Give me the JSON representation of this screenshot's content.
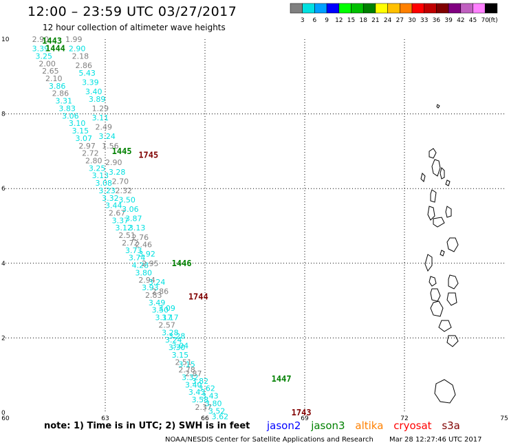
{
  "header": {
    "title": "12:00 – 23:59 UTC 03/27/2017",
    "subtitle": "12 hour collection of altimeter wave heights"
  },
  "legend": {
    "unit": "(ft)",
    "bins": [
      {
        "label": "3",
        "color": "#808080"
      },
      {
        "label": "6",
        "color": "#00e0e0"
      },
      {
        "label": "9",
        "color": "#00a0ff"
      },
      {
        "label": "12",
        "color": "#0000ff"
      },
      {
        "label": "15",
        "color": "#00ff00"
      },
      {
        "label": "18",
        "color": "#00c000"
      },
      {
        "label": "21",
        "color": "#008000"
      },
      {
        "label": "24",
        "color": "#ffff00"
      },
      {
        "label": "27",
        "color": "#ffc000"
      },
      {
        "label": "30",
        "color": "#ff8000"
      },
      {
        "label": "33",
        "color": "#ff0000"
      },
      {
        "label": "36",
        "color": "#c00000"
      },
      {
        "label": "39",
        "color": "#800000"
      },
      {
        "label": "42",
        "color": "#800080"
      },
      {
        "label": "45",
        "color": "#c060c0"
      },
      {
        "label": "70",
        "color": "#ff80ff"
      },
      {
        "label": "",
        "color": "#000000"
      }
    ]
  },
  "axes": {
    "x_ticks": [
      "60",
      "63",
      "66",
      "69",
      "72",
      "75"
    ],
    "y_ticks": [
      "0",
      "2",
      "4",
      "6",
      "8",
      "10"
    ]
  },
  "passes": [
    {
      "time": "1443",
      "color": "#008000",
      "lon": 61.1,
      "lat": 9.95
    },
    {
      "time": "1444",
      "color": "#008000",
      "lon": 61.2,
      "lat": 9.75
    },
    {
      "time": "1445",
      "color": "#008000",
      "lon": 63.2,
      "lat": 7.0
    },
    {
      "time": "1745",
      "color": "#800000",
      "lon": 64.0,
      "lat": 6.9
    },
    {
      "time": "1446",
      "color": "#008000",
      "lon": 65.0,
      "lat": 4.0
    },
    {
      "time": "1744",
      "color": "#800000",
      "lon": 65.5,
      "lat": 3.1
    },
    {
      "time": "1447",
      "color": "#008000",
      "lon": 68.0,
      "lat": 0.9
    },
    {
      "time": "1743",
      "color": "#800000",
      "lon": 68.6,
      "lat": 0.0
    }
  ],
  "obs": [
    {
      "v": "2.90",
      "color": "#808080",
      "lon": 60.8,
      "lat": 10.0
    },
    {
      "v": "3.39",
      "color": "#00e0e0",
      "lon": 60.8,
      "lat": 9.75
    },
    {
      "v": "3.25",
      "color": "#00e0e0",
      "lon": 60.9,
      "lat": 9.55
    },
    {
      "v": "2.00",
      "color": "#808080",
      "lon": 61.0,
      "lat": 9.35
    },
    {
      "v": "2.65",
      "color": "#808080",
      "lon": 61.1,
      "lat": 9.15
    },
    {
      "v": "2.10",
      "color": "#808080",
      "lon": 61.2,
      "lat": 8.95
    },
    {
      "v": "3.86",
      "color": "#00e0e0",
      "lon": 61.3,
      "lat": 8.75
    },
    {
      "v": "2.86",
      "color": "#808080",
      "lon": 61.4,
      "lat": 8.55
    },
    {
      "v": "3.31",
      "color": "#00e0e0",
      "lon": 61.5,
      "lat": 8.35
    },
    {
      "v": "3.83",
      "color": "#00e0e0",
      "lon": 61.6,
      "lat": 8.15
    },
    {
      "v": "3.06",
      "color": "#00e0e0",
      "lon": 61.7,
      "lat": 7.95
    },
    {
      "v": "3.10",
      "color": "#00e0e0",
      "lon": 61.9,
      "lat": 7.75
    },
    {
      "v": "3.15",
      "color": "#00e0e0",
      "lon": 62.0,
      "lat": 7.55
    },
    {
      "v": "3.07",
      "color": "#00e0e0",
      "lon": 62.1,
      "lat": 7.35
    },
    {
      "v": "2.97",
      "color": "#808080",
      "lon": 62.2,
      "lat": 7.15
    },
    {
      "v": "2.72",
      "color": "#808080",
      "lon": 62.3,
      "lat": 6.95
    },
    {
      "v": "2.80",
      "color": "#808080",
      "lon": 62.4,
      "lat": 6.75
    },
    {
      "v": "3.25",
      "color": "#00e0e0",
      "lon": 62.5,
      "lat": 6.55
    },
    {
      "v": "3.13",
      "color": "#00e0e0",
      "lon": 62.6,
      "lat": 6.35
    },
    {
      "v": "3.08",
      "color": "#00e0e0",
      "lon": 62.7,
      "lat": 6.15
    },
    {
      "v": "3.23",
      "color": "#00e0e0",
      "lon": 62.8,
      "lat": 5.95
    },
    {
      "v": "3.32",
      "color": "#00e0e0",
      "lon": 62.9,
      "lat": 5.75
    },
    {
      "v": "3.44",
      "color": "#00e0e0",
      "lon": 63.0,
      "lat": 5.55
    },
    {
      "v": "2.67",
      "color": "#808080",
      "lon": 63.1,
      "lat": 5.35
    },
    {
      "v": "3.37",
      "color": "#00e0e0",
      "lon": 63.2,
      "lat": 5.15
    },
    {
      "v": "3.12",
      "color": "#00e0e0",
      "lon": 63.3,
      "lat": 4.95
    },
    {
      "v": "2.51",
      "color": "#808080",
      "lon": 63.4,
      "lat": 4.75
    },
    {
      "v": "2.72",
      "color": "#808080",
      "lon": 63.5,
      "lat": 4.55
    },
    {
      "v": "3.73",
      "color": "#00e0e0",
      "lon": 63.6,
      "lat": 4.35
    },
    {
      "v": "3.74",
      "color": "#00e0e0",
      "lon": 63.7,
      "lat": 4.15
    },
    {
      "v": "4.28",
      "color": "#00e0e0",
      "lon": 63.8,
      "lat": 3.95
    },
    {
      "v": "3.80",
      "color": "#00e0e0",
      "lon": 63.9,
      "lat": 3.75
    },
    {
      "v": "2.94",
      "color": "#808080",
      "lon": 64.0,
      "lat": 3.55
    },
    {
      "v": "3.93",
      "color": "#00e0e0",
      "lon": 64.1,
      "lat": 3.35
    },
    {
      "v": "2.83",
      "color": "#808080",
      "lon": 64.2,
      "lat": 3.15
    },
    {
      "v": "3.49",
      "color": "#00e0e0",
      "lon": 64.3,
      "lat": 2.95
    },
    {
      "v": "3.50",
      "color": "#00e0e0",
      "lon": 64.4,
      "lat": 2.75
    },
    {
      "v": "3.17",
      "color": "#00e0e0",
      "lon": 64.5,
      "lat": 2.55
    },
    {
      "v": "2.57",
      "color": "#808080",
      "lon": 64.6,
      "lat": 2.35
    },
    {
      "v": "3.28",
      "color": "#00e0e0",
      "lon": 64.7,
      "lat": 2.15
    },
    {
      "v": "3.24",
      "color": "#00e0e0",
      "lon": 64.8,
      "lat": 1.95
    },
    {
      "v": "3.30",
      "color": "#00e0e0",
      "lon": 64.9,
      "lat": 1.75
    },
    {
      "v": "3.15",
      "color": "#00e0e0",
      "lon": 65.0,
      "lat": 1.55
    },
    {
      "v": "2.51",
      "color": "#808080",
      "lon": 65.1,
      "lat": 1.35
    },
    {
      "v": "2.78",
      "color": "#808080",
      "lon": 65.2,
      "lat": 1.15
    },
    {
      "v": "3.32",
      "color": "#00e0e0",
      "lon": 65.3,
      "lat": 0.95
    },
    {
      "v": "3.40",
      "color": "#00e0e0",
      "lon": 65.4,
      "lat": 0.75
    },
    {
      "v": "3.43",
      "color": "#00e0e0",
      "lon": 65.5,
      "lat": 0.55
    },
    {
      "v": "3.58",
      "color": "#00e0e0",
      "lon": 65.6,
      "lat": 0.35
    },
    {
      "v": "2.37",
      "color": "#808080",
      "lon": 65.7,
      "lat": 0.15
    },
    {
      "v": "1.99",
      "color": "#808080",
      "lon": 61.8,
      "lat": 10.0
    },
    {
      "v": "2.90",
      "color": "#00e0e0",
      "lon": 61.9,
      "lat": 9.75
    },
    {
      "v": "2.18",
      "color": "#808080",
      "lon": 62.0,
      "lat": 9.55
    },
    {
      "v": "2.86",
      "color": "#808080",
      "lon": 62.1,
      "lat": 9.3
    },
    {
      "v": "5.43",
      "color": "#00e0e0",
      "lon": 62.2,
      "lat": 9.1
    },
    {
      "v": "3.39",
      "color": "#00e0e0",
      "lon": 62.3,
      "lat": 8.85
    },
    {
      "v": "3.40",
      "color": "#00e0e0",
      "lon": 62.4,
      "lat": 8.6
    },
    {
      "v": "3.89",
      "color": "#00e0e0",
      "lon": 62.5,
      "lat": 8.4
    },
    {
      "v": "1.29",
      "color": "#808080",
      "lon": 62.6,
      "lat": 8.15
    },
    {
      "v": "3.11",
      "color": "#00e0e0",
      "lon": 62.6,
      "lat": 7.9
    },
    {
      "v": "2.49",
      "color": "#808080",
      "lon": 62.7,
      "lat": 7.65
    },
    {
      "v": "3.24",
      "color": "#00e0e0",
      "lon": 62.8,
      "lat": 7.4
    },
    {
      "v": "1.56",
      "color": "#808080",
      "lon": 62.9,
      "lat": 7.15
    },
    {
      "v": "2.90",
      "color": "#808080",
      "lon": 63.0,
      "lat": 6.7
    },
    {
      "v": "3.28",
      "color": "#00e0e0",
      "lon": 63.1,
      "lat": 6.45
    },
    {
      "v": "2.70",
      "color": "#808080",
      "lon": 63.2,
      "lat": 6.2
    },
    {
      "v": "2.32",
      "color": "#808080",
      "lon": 63.3,
      "lat": 5.95
    },
    {
      "v": "3.50",
      "color": "#00e0e0",
      "lon": 63.4,
      "lat": 5.7
    },
    {
      "v": "3.06",
      "color": "#00e0e0",
      "lon": 63.5,
      "lat": 5.45
    },
    {
      "v": "3.87",
      "color": "#00e0e0",
      "lon": 63.6,
      "lat": 5.2
    },
    {
      "v": "3.13",
      "color": "#00e0e0",
      "lon": 63.7,
      "lat": 4.95
    },
    {
      "v": "2.76",
      "color": "#808080",
      "lon": 63.8,
      "lat": 4.7
    },
    {
      "v": "2.46",
      "color": "#808080",
      "lon": 63.9,
      "lat": 4.5
    },
    {
      "v": "3.92",
      "color": "#00e0e0",
      "lon": 64.0,
      "lat": 4.25
    },
    {
      "v": "2.95",
      "color": "#808080",
      "lon": 64.1,
      "lat": 4.0
    },
    {
      "v": "3.24",
      "color": "#00e0e0",
      "lon": 64.3,
      "lat": 3.5
    },
    {
      "v": "2.86",
      "color": "#808080",
      "lon": 64.4,
      "lat": 3.25
    },
    {
      "v": "3.09",
      "color": "#00e0e0",
      "lon": 64.6,
      "lat": 2.8
    },
    {
      "v": "3.17",
      "color": "#00e0e0",
      "lon": 64.7,
      "lat": 2.55
    },
    {
      "v": "3.28",
      "color": "#00e0e0",
      "lon": 64.9,
      "lat": 2.05
    },
    {
      "v": "3.04",
      "color": "#00e0e0",
      "lon": 65.0,
      "lat": 1.8
    },
    {
      "v": "3.15",
      "color": "#00e0e0",
      "lon": 65.2,
      "lat": 1.3
    },
    {
      "v": "2.87",
      "color": "#808080",
      "lon": 65.4,
      "lat": 1.05
    },
    {
      "v": "3.82",
      "color": "#00e0e0",
      "lon": 65.6,
      "lat": 0.85
    },
    {
      "v": "3.62",
      "color": "#00e0e0",
      "lon": 65.8,
      "lat": 0.65
    },
    {
      "v": "3.43",
      "color": "#00e0e0",
      "lon": 65.9,
      "lat": 0.45
    },
    {
      "v": "3.80",
      "color": "#00e0e0",
      "lon": 66.0,
      "lat": 0.25
    },
    {
      "v": "3.52",
      "color": "#00e0e0",
      "lon": 66.1,
      "lat": 0.05
    },
    {
      "v": "3.62",
      "color": "#00e0e0",
      "lon": 66.2,
      "lat": -0.1
    }
  ],
  "footer": {
    "note": "note: 1) Time is in UTC; 2) SWH is in feet",
    "sats": [
      {
        "name": "jason2",
        "color": "#0000ff"
      },
      {
        "name": "jason3",
        "color": "#008000"
      },
      {
        "name": "altika",
        "color": "#ff8000"
      },
      {
        "name": "cryosat",
        "color": "#ff0000"
      },
      {
        "name": "s3a",
        "color": "#800000"
      }
    ],
    "credit": "NOAA/NESDIS Center for Satellite Applications and Research",
    "timestamp": "Mar 28 12:27:46 UTC 2017"
  }
}
